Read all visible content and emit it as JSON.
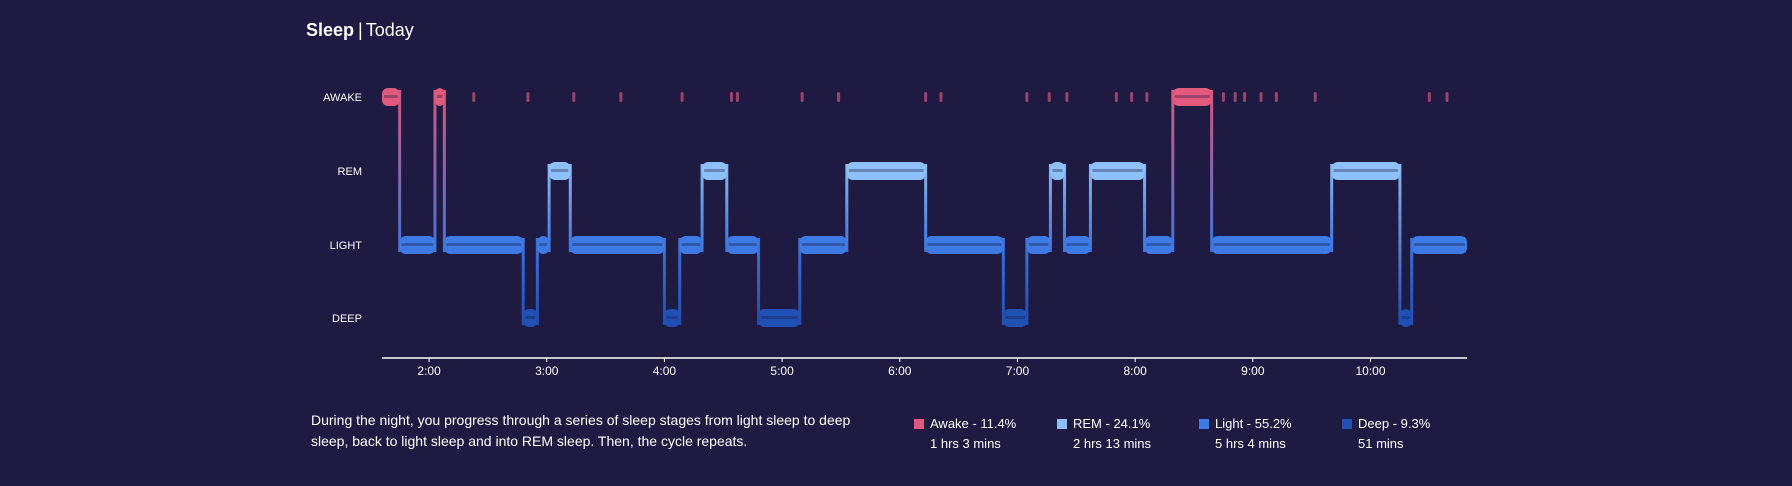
{
  "header": {
    "title": "Sleep",
    "subtitle": "Today"
  },
  "description": "During the night, you progress through a series of sleep stages from light sleep to deep sleep, back to light sleep and into REM sleep. Then, the cycle repeats.",
  "colors": {
    "background": "#1e1a41",
    "awake": "#e05a7e",
    "rem": "#8ec1fa",
    "light": "#3d7ae3",
    "deep": "#2150b5",
    "axis": "#ffffff"
  },
  "legend": [
    {
      "stage": "awake",
      "label": "Awake - 11.4%",
      "duration": "1 hrs 3 mins",
      "color": "#e05a7e"
    },
    {
      "stage": "rem",
      "label": "REM - 24.1%",
      "duration": "2 hrs 13 mins",
      "color": "#8ec1fa"
    },
    {
      "stage": "light",
      "label": "Light - 55.2%",
      "duration": "5 hrs 4 mins",
      "color": "#3d7ae3"
    },
    {
      "stage": "deep",
      "label": "Deep - 9.3%",
      "duration": "51 mins",
      "color": "#2150b5"
    }
  ],
  "chart_data": {
    "type": "hypnogram",
    "x_unit": "hours (clock time)",
    "xlim": [
      1.6,
      10.82
    ],
    "x_ticks": [
      2,
      3,
      4,
      5,
      6,
      7,
      8,
      9,
      10
    ],
    "x_tick_labels": [
      "2:00",
      "3:00",
      "4:00",
      "5:00",
      "6:00",
      "7:00",
      "8:00",
      "9:00",
      "10:00"
    ],
    "stages": [
      "AWAKE",
      "REM",
      "LIGHT",
      "DEEP"
    ],
    "stage_keys": [
      "awake",
      "rem",
      "light",
      "deep"
    ],
    "segments": [
      {
        "stage": "awake",
        "start": 1.6,
        "end": 1.75
      },
      {
        "stage": "light",
        "start": 1.75,
        "end": 2.05
      },
      {
        "stage": "awake",
        "start": 2.05,
        "end": 2.13
      },
      {
        "stage": "light",
        "start": 2.13,
        "end": 2.8
      },
      {
        "stage": "deep",
        "start": 2.8,
        "end": 2.92
      },
      {
        "stage": "light",
        "start": 2.92,
        "end": 3.02
      },
      {
        "stage": "rem",
        "start": 3.02,
        "end": 3.2
      },
      {
        "stage": "light",
        "start": 3.2,
        "end": 4.0
      },
      {
        "stage": "deep",
        "start": 4.0,
        "end": 4.13
      },
      {
        "stage": "light",
        "start": 4.13,
        "end": 4.32
      },
      {
        "stage": "rem",
        "start": 4.32,
        "end": 4.53
      },
      {
        "stage": "light",
        "start": 4.53,
        "end": 4.8
      },
      {
        "stage": "deep",
        "start": 4.8,
        "end": 5.15
      },
      {
        "stage": "light",
        "start": 5.15,
        "end": 5.55
      },
      {
        "stage": "rem",
        "start": 5.55,
        "end": 6.22
      },
      {
        "stage": "light",
        "start": 6.22,
        "end": 6.88
      },
      {
        "stage": "deep",
        "start": 6.88,
        "end": 7.08
      },
      {
        "stage": "light",
        "start": 7.08,
        "end": 7.28
      },
      {
        "stage": "rem",
        "start": 7.28,
        "end": 7.4
      },
      {
        "stage": "light",
        "start": 7.4,
        "end": 7.62
      },
      {
        "stage": "rem",
        "start": 7.62,
        "end": 8.08
      },
      {
        "stage": "light",
        "start": 8.08,
        "end": 8.32
      },
      {
        "stage": "awake",
        "start": 8.32,
        "end": 8.65
      },
      {
        "stage": "light",
        "start": 8.65,
        "end": 9.67
      },
      {
        "stage": "rem",
        "start": 9.67,
        "end": 10.25
      },
      {
        "stage": "deep",
        "start": 10.25,
        "end": 10.35
      },
      {
        "stage": "light",
        "start": 10.35,
        "end": 10.82
      }
    ],
    "awake_blips": [
      2.38,
      2.84,
      3.23,
      3.63,
      4.15,
      4.57,
      4.62,
      5.17,
      5.48,
      6.22,
      6.35,
      7.08,
      7.27,
      7.42,
      7.84,
      7.97,
      8.1,
      8.75,
      8.85,
      8.93,
      9.07,
      9.2,
      9.53,
      10.5,
      10.65
    ]
  }
}
